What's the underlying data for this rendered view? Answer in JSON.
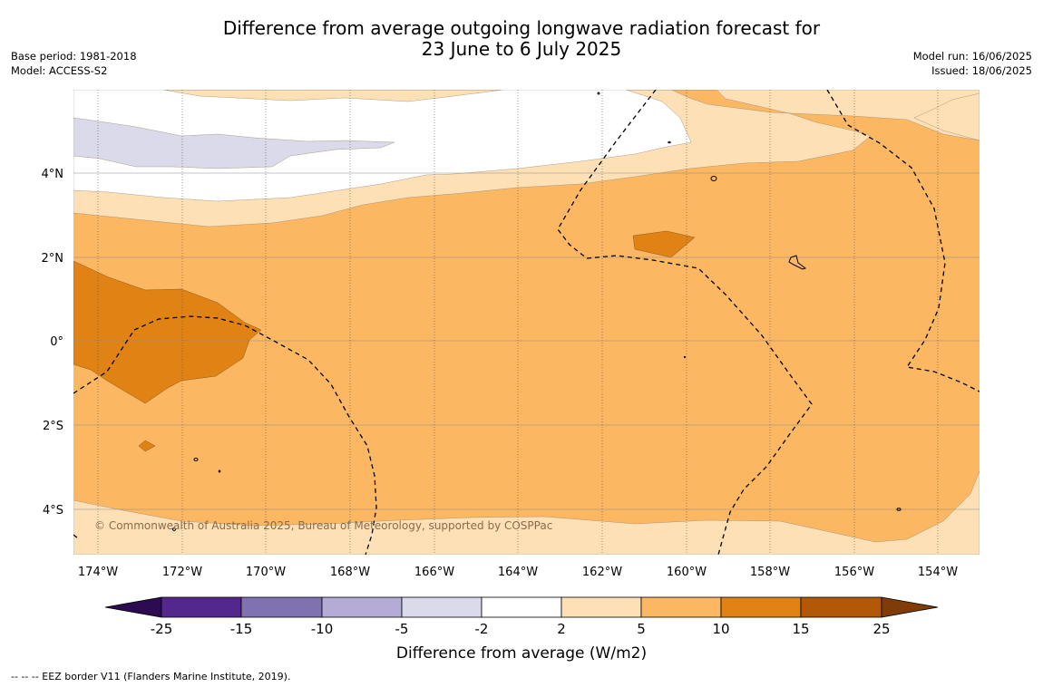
{
  "title": {
    "line1": "Difference from average outgoing longwave radiation forecast for",
    "line2": "23 June to 6 July 2025"
  },
  "meta_left": {
    "base_period": "Base period: 1981-2018",
    "model": "Model: ACCESS-S2"
  },
  "meta_right": {
    "model_run": "Model run: 16/06/2025",
    "issued": "Issued: 18/06/2025"
  },
  "map": {
    "lat_ticks": [
      "4°N",
      "2°N",
      "0°",
      "2°S",
      "4°S"
    ],
    "lon_ticks": [
      "174°W",
      "172°W",
      "170°W",
      "168°W",
      "166°W",
      "164°W",
      "162°W",
      "160°W",
      "158°W",
      "156°W",
      "154°W"
    ],
    "copyright": "© Commonwealth of Australia 2025, Bureau of Meteorology, supported by COSPPac"
  },
  "colorbar": {
    "label": "Difference from average (W/m2)",
    "ticks": [
      "-25",
      "-15",
      "-10",
      "-5",
      "-2",
      "2",
      "5",
      "10",
      "15",
      "25"
    ],
    "colors": {
      "below_-25": "#2d0b52",
      "-25_-15": "#54278f",
      "-15_-10": "#8071b0",
      "-10_-5": "#b4acd6",
      "-5_-2": "#dadaeb",
      "-2_2": "#ffffff",
      "2_5": "#fde0b6",
      "5_10": "#fbb762",
      "10_15": "#e08214",
      "15_25": "#b35806",
      "above_25": "#7f3b08"
    }
  },
  "footnote": "--  --  -- EEZ border V11 (Flanders Marine Institute, 2019)."
}
